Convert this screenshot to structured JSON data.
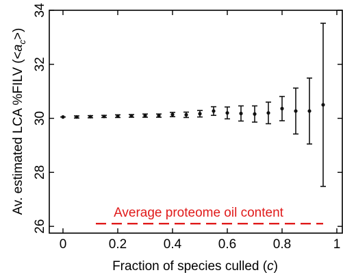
{
  "chart_data": {
    "type": "scatter",
    "xlabel_main": "Fraction of species culled (",
    "xlabel_var": "c",
    "xlabel_end": ")",
    "ylabel_main": "Av. estimated LCA %FILV (<",
    "ylabel_var": "a",
    "ylabel_sub": "c",
    "ylabel_end": ">)",
    "xlim": [
      -0.05,
      1.02
    ],
    "ylim": [
      25.75,
      34
    ],
    "xticks": [
      0,
      0.2,
      0.4,
      0.6,
      0.8,
      1
    ],
    "xtick_labels": [
      "0",
      "0.2",
      "0.4",
      "0.6",
      "0.8",
      "1"
    ],
    "yticks": [
      26,
      28,
      30,
      32,
      34
    ],
    "ytick_labels": [
      "26",
      "28",
      "30",
      "32",
      "34"
    ],
    "series": [
      {
        "x": [
          0,
          0.05,
          0.1,
          0.15,
          0.2,
          0.25,
          0.3,
          0.35,
          0.4,
          0.45,
          0.5,
          0.55,
          0.6,
          0.65,
          0.7,
          0.75,
          0.8,
          0.85,
          0.9,
          0.95
        ],
        "y": [
          30.05,
          30.05,
          30.06,
          30.07,
          30.08,
          30.09,
          30.1,
          30.1,
          30.14,
          30.13,
          30.17,
          30.27,
          30.2,
          30.18,
          30.16,
          30.2,
          30.36,
          30.27,
          30.27,
          30.5
        ],
        "err": [
          0.03,
          0.04,
          0.04,
          0.04,
          0.05,
          0.05,
          0.06,
          0.06,
          0.08,
          0.1,
          0.12,
          0.16,
          0.22,
          0.28,
          0.3,
          0.4,
          0.45,
          0.85,
          1.22,
          3.02
        ]
      }
    ],
    "reference_line": {
      "y": 26.1,
      "label": "Average proteome oil content",
      "color": "#e01a1a"
    }
  }
}
